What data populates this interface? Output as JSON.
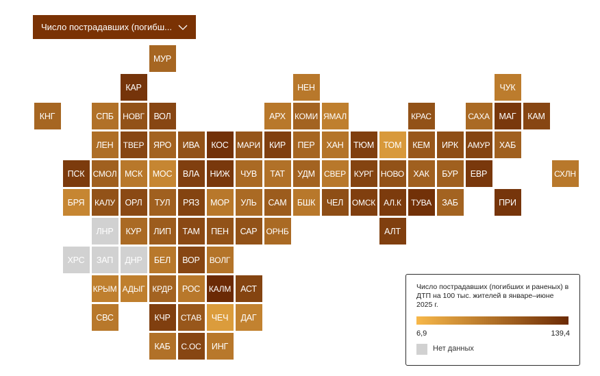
{
  "selector": {
    "label": "Число пострадавших (погибш...",
    "icon": "chevron-down-icon"
  },
  "legend": {
    "title": "Число пострадавших (погибших и раненых) в ДТП на 100 тыс. жителей в январе–июне 2025 г.",
    "min_label": "6,9",
    "max_label": "139,4",
    "no_data_label": "Нет данных",
    "color_low": "#f7b84a",
    "color_high": "#6b2a05",
    "no_data_color": "#d1d1d1"
  },
  "regions": [
    {
      "label": "МУР",
      "col": 5,
      "row": 0,
      "level": 0.58
    },
    {
      "label": "КАР",
      "col": 4,
      "row": 1,
      "level": 0.93
    },
    {
      "label": "НЕН",
      "col": 10,
      "row": 1,
      "level": 0.45
    },
    {
      "label": "ЧУК",
      "col": 17,
      "row": 1,
      "level": 0.42
    },
    {
      "label": "КНГ",
      "col": 1,
      "row": 2,
      "level": 0.58
    },
    {
      "label": "СПБ",
      "col": 3,
      "row": 2,
      "level": 0.5
    },
    {
      "label": "НОВГ",
      "col": 4,
      "row": 2,
      "level": 0.72
    },
    {
      "label": "ВОЛ",
      "col": 5,
      "row": 2,
      "level": 0.8
    },
    {
      "label": "АРХ",
      "col": 9,
      "row": 2,
      "level": 0.45
    },
    {
      "label": "КОМИ",
      "col": 10,
      "row": 2,
      "level": 0.6
    },
    {
      "label": "ЯМАЛ",
      "col": 11,
      "row": 2,
      "level": 0.4
    },
    {
      "label": "КРАС",
      "col": 14,
      "row": 2,
      "level": 0.72
    },
    {
      "label": "САХА",
      "col": 16,
      "row": 2,
      "level": 0.55
    },
    {
      "label": "МАГ",
      "col": 17,
      "row": 2,
      "level": 0.9
    },
    {
      "label": "КАМ",
      "col": 18,
      "row": 2,
      "level": 0.8
    },
    {
      "label": "ЛЕН",
      "col": 3,
      "row": 3,
      "level": 0.52
    },
    {
      "label": "ТВЕР",
      "col": 4,
      "row": 3,
      "level": 0.8
    },
    {
      "label": "ЯРО",
      "col": 5,
      "row": 3,
      "level": 0.6
    },
    {
      "label": "ИВА",
      "col": 6,
      "row": 3,
      "level": 0.72
    },
    {
      "label": "КОС",
      "col": 7,
      "row": 3,
      "level": 0.95
    },
    {
      "label": "МАРИ",
      "col": 8,
      "row": 3,
      "level": 0.7
    },
    {
      "label": "КИР",
      "col": 9,
      "row": 3,
      "level": 0.85
    },
    {
      "label": "ПЕР",
      "col": 10,
      "row": 3,
      "level": 0.58
    },
    {
      "label": "ХАН",
      "col": 11,
      "row": 3,
      "level": 0.48
    },
    {
      "label": "ТЮМ",
      "col": 12,
      "row": 3,
      "level": 0.85
    },
    {
      "label": "ТОМ",
      "col": 13,
      "row": 3,
      "level": 0.22
    },
    {
      "label": "КЕМ",
      "col": 14,
      "row": 3,
      "level": 0.68
    },
    {
      "label": "ИРК",
      "col": 15,
      "row": 3,
      "level": 0.75
    },
    {
      "label": "АМУР",
      "col": 16,
      "row": 3,
      "level": 0.82
    },
    {
      "label": "ХАБ",
      "col": 17,
      "row": 3,
      "level": 0.62
    },
    {
      "label": "ПСК",
      "col": 2,
      "row": 4,
      "level": 0.88
    },
    {
      "label": "СМОЛ",
      "col": 3,
      "row": 4,
      "level": 0.62
    },
    {
      "label": "МСК",
      "col": 4,
      "row": 4,
      "level": 0.45
    },
    {
      "label": "МОС",
      "col": 5,
      "row": 4,
      "level": 0.35
    },
    {
      "label": "ВЛА",
      "col": 6,
      "row": 4,
      "level": 0.85
    },
    {
      "label": "НИЖ",
      "col": 7,
      "row": 4,
      "level": 0.9
    },
    {
      "label": "ЧУВ",
      "col": 8,
      "row": 4,
      "level": 0.55
    },
    {
      "label": "ТАТ",
      "col": 9,
      "row": 4,
      "level": 0.5
    },
    {
      "label": "УДМ",
      "col": 10,
      "row": 4,
      "level": 0.6
    },
    {
      "label": "СВЕР",
      "col": 11,
      "row": 4,
      "level": 0.45
    },
    {
      "label": "КУРГ",
      "col": 12,
      "row": 4,
      "level": 0.82
    },
    {
      "label": "НОВО",
      "col": 13,
      "row": 4,
      "level": 0.72
    },
    {
      "label": "ХАК",
      "col": 14,
      "row": 4,
      "level": 0.62
    },
    {
      "label": "БУР",
      "col": 15,
      "row": 4,
      "level": 0.62
    },
    {
      "label": "ЕВР",
      "col": 16,
      "row": 4,
      "level": 0.9
    },
    {
      "label": "СХЛН",
      "col": 19,
      "row": 4,
      "level": 0.45
    },
    {
      "label": "БРЯ",
      "col": 2,
      "row": 5,
      "level": 0.35
    },
    {
      "label": "КАЛУ",
      "col": 3,
      "row": 5,
      "level": 0.72
    },
    {
      "label": "ОРЛ",
      "col": 4,
      "row": 5,
      "level": 0.78
    },
    {
      "label": "ТУЛ",
      "col": 5,
      "row": 5,
      "level": 0.62
    },
    {
      "label": "РЯЗ",
      "col": 6,
      "row": 5,
      "level": 0.82
    },
    {
      "label": "МОР",
      "col": 7,
      "row": 5,
      "level": 0.45
    },
    {
      "label": "УЛЬ",
      "col": 8,
      "row": 5,
      "level": 0.55
    },
    {
      "label": "САМ",
      "col": 9,
      "row": 5,
      "level": 0.65
    },
    {
      "label": "БШК",
      "col": 10,
      "row": 5,
      "level": 0.45
    },
    {
      "label": "ЧЕЛ",
      "col": 11,
      "row": 5,
      "level": 0.75
    },
    {
      "label": "ОМСК",
      "col": 12,
      "row": 5,
      "level": 0.85
    },
    {
      "label": "АЛ.К",
      "col": 13,
      "row": 5,
      "level": 0.88
    },
    {
      "label": "ТУВА",
      "col": 14,
      "row": 5,
      "level": 0.95
    },
    {
      "label": "ЗАБ",
      "col": 15,
      "row": 5,
      "level": 0.6
    },
    {
      "label": "ПРИ",
      "col": 17,
      "row": 5,
      "level": 0.92
    },
    {
      "label": "ЛНР",
      "col": 3,
      "row": 6,
      "level": null
    },
    {
      "label": "КУР",
      "col": 4,
      "row": 6,
      "level": 0.55
    },
    {
      "label": "ЛИП",
      "col": 5,
      "row": 6,
      "level": 0.65
    },
    {
      "label": "ТАМ",
      "col": 6,
      "row": 6,
      "level": 0.78
    },
    {
      "label": "ПЕН",
      "col": 7,
      "row": 6,
      "level": 0.72
    },
    {
      "label": "САР",
      "col": 8,
      "row": 6,
      "level": 0.72
    },
    {
      "label": "ОРНБ",
      "col": 9,
      "row": 6,
      "level": 0.55
    },
    {
      "label": "АЛТ",
      "col": 13,
      "row": 6,
      "level": 0.85
    },
    {
      "label": "ХРС",
      "col": 2,
      "row": 7,
      "level": null
    },
    {
      "label": "ЗАП",
      "col": 3,
      "row": 7,
      "level": null
    },
    {
      "label": "ДНР",
      "col": 4,
      "row": 7,
      "level": null
    },
    {
      "label": "БЕЛ",
      "col": 5,
      "row": 7,
      "level": 0.45
    },
    {
      "label": "ВОР",
      "col": 6,
      "row": 7,
      "level": 0.8
    },
    {
      "label": "ВОЛГ",
      "col": 7,
      "row": 7,
      "level": 0.48
    },
    {
      "label": "КРЫМ",
      "col": 3,
      "row": 8,
      "level": 0.4
    },
    {
      "label": "АДЫГ",
      "col": 4,
      "row": 8,
      "level": 0.4
    },
    {
      "label": "КРДР",
      "col": 5,
      "row": 8,
      "level": 0.6
    },
    {
      "label": "РОС",
      "col": 6,
      "row": 8,
      "level": 0.45
    },
    {
      "label": "КАЛМ",
      "col": 7,
      "row": 8,
      "level": 1.0
    },
    {
      "label": "АСТ",
      "col": 8,
      "row": 8,
      "level": 0.82
    },
    {
      "label": "СВС",
      "col": 3,
      "row": 9,
      "level": 0.45
    },
    {
      "label": "КЧР",
      "col": 5,
      "row": 9,
      "level": 0.85
    },
    {
      "label": "СТАВ",
      "col": 6,
      "row": 9,
      "level": 0.68
    },
    {
      "label": "ЧЕЧ",
      "col": 7,
      "row": 9,
      "level": 0.2
    },
    {
      "label": "ДАГ",
      "col": 8,
      "row": 9,
      "level": 0.38
    },
    {
      "label": "КАБ",
      "col": 5,
      "row": 10,
      "level": 0.5
    },
    {
      "label": "С.ОС",
      "col": 6,
      "row": 10,
      "level": 0.8
    },
    {
      "label": "ИНГ",
      "col": 7,
      "row": 10,
      "level": 0.45
    }
  ]
}
